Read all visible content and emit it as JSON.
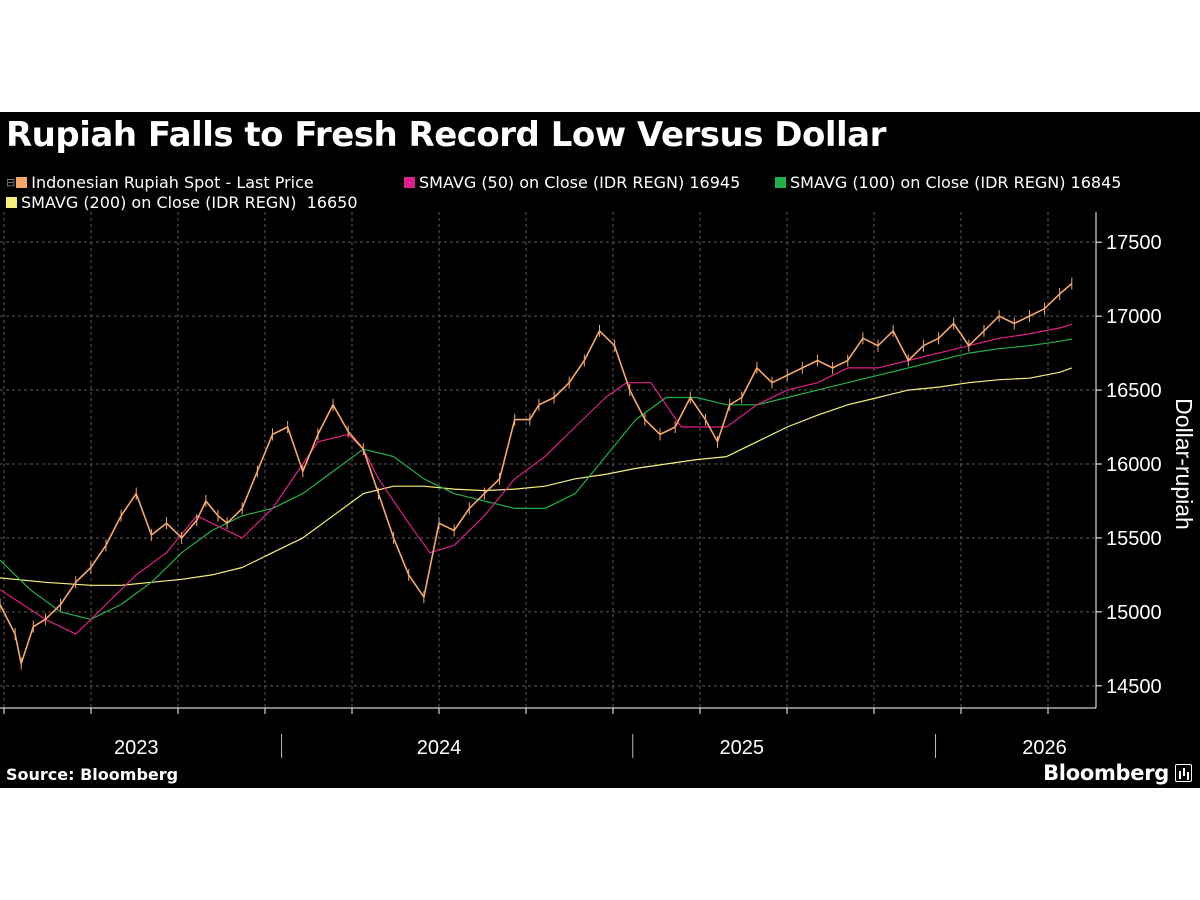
{
  "chart_data": {
    "type": "line",
    "title": "Rupiah Falls to Fresh Record Low Versus Dollar",
    "ylabel": "Dollar-rupiah",
    "xlabel": "",
    "ylim": [
      14350,
      17650
    ],
    "yticks": [
      14500,
      15000,
      15500,
      16000,
      16500,
      17000,
      17500
    ],
    "ytick_labels": [
      "14500",
      "15000",
      "15500",
      "16000",
      "16500",
      "17000",
      "17500"
    ],
    "xlim": [
      2022.55,
      2026.17
    ],
    "xticks": [
      {
        "label": "2023",
        "x": 2023.0
      },
      {
        "label": "2024",
        "x": 2024.0
      },
      {
        "label": "2025",
        "x": 2025.0
      },
      {
        "label": "2026",
        "x": 2026.0
      }
    ],
    "year_separators": [
      2023.48,
      2024.64,
      2025.64
    ],
    "grid": true,
    "legend": [
      {
        "key": "spot",
        "label": "Indonesian Rupiah Spot - Last Price",
        "value": "",
        "color": "#f4a86a"
      },
      {
        "key": "sma50",
        "label": "SMAVG (50)  on Close (IDR REGN)",
        "value": "16945",
        "color": "#e0208a"
      },
      {
        "key": "sma100",
        "label": "SMAVG (100)  on Close (IDR REGN)",
        "value": "16845",
        "color": "#22b04a"
      },
      {
        "key": "sma200",
        "label": "SMAVG (200)  on Close (IDR REGN)",
        "value": "16650",
        "color": "#f6f07a"
      }
    ],
    "series": [
      {
        "name": "Indonesian Rupiah Spot - Last Price",
        "color": "#f4a86a",
        "x": [
          2022.55,
          2022.6,
          2022.62,
          2022.66,
          2022.7,
          2022.75,
          2022.8,
          2022.85,
          2022.9,
          2022.95,
          2023.0,
          2023.05,
          2023.1,
          2023.15,
          2023.2,
          2023.23,
          2023.27,
          2023.3,
          2023.35,
          2023.4,
          2023.45,
          2023.5,
          2023.55,
          2023.6,
          2023.65,
          2023.7,
          2023.75,
          2023.8,
          2023.85,
          2023.9,
          2023.95,
          2024.0,
          2024.05,
          2024.1,
          2024.15,
          2024.2,
          2024.25,
          2024.3,
          2024.33,
          2024.38,
          2024.43,
          2024.48,
          2024.53,
          2024.58,
          2024.63,
          2024.68,
          2024.73,
          2024.78,
          2024.83,
          2024.88,
          2024.92,
          2024.96,
          2025.0,
          2025.05,
          2025.1,
          2025.15,
          2025.2,
          2025.25,
          2025.3,
          2025.35,
          2025.4,
          2025.45,
          2025.5,
          2025.55,
          2025.6,
          2025.65,
          2025.7,
          2025.75,
          2025.8,
          2025.85,
          2025.9,
          2025.95,
          2026.0,
          2026.05,
          2026.09
        ],
        "values": [
          15050,
          14850,
          14650,
          14900,
          14950,
          15050,
          15200,
          15300,
          15450,
          15650,
          15800,
          15520,
          15600,
          15500,
          15620,
          15750,
          15650,
          15600,
          15700,
          15950,
          16200,
          16250,
          15950,
          16200,
          16400,
          16220,
          16100,
          15800,
          15500,
          15250,
          15100,
          15600,
          15550,
          15700,
          15800,
          15900,
          16300,
          16300,
          16400,
          16450,
          16550,
          16700,
          16900,
          16800,
          16500,
          16300,
          16200,
          16250,
          16450,
          16300,
          16150,
          16400,
          16450,
          16650,
          16550,
          16600,
          16650,
          16700,
          16650,
          16700,
          16850,
          16800,
          16900,
          16700,
          16800,
          16850,
          16950,
          16800,
          16900,
          17000,
          16950,
          17000,
          17050,
          17150,
          17220
        ]
      },
      {
        "name": "SMAVG (50)  on Close (IDR REGN)",
        "color": "#e0208a",
        "x": [
          2022.55,
          2022.7,
          2022.8,
          2022.9,
          2023.0,
          2023.1,
          2023.2,
          2023.25,
          2023.35,
          2023.45,
          2023.55,
          2023.6,
          2023.7,
          2023.75,
          2023.8,
          2023.9,
          2023.97,
          2024.05,
          2024.15,
          2024.25,
          2024.35,
          2024.45,
          2024.55,
          2024.62,
          2024.7,
          2024.8,
          2024.88,
          2024.95,
          2025.05,
          2025.15,
          2025.25,
          2025.35,
          2025.45,
          2025.55,
          2025.65,
          2025.75,
          2025.85,
          2025.95,
          2026.05,
          2026.09
        ],
        "values": [
          15150,
          14950,
          14850,
          15050,
          15250,
          15400,
          15650,
          15600,
          15500,
          15700,
          16000,
          16150,
          16200,
          16100,
          15900,
          15600,
          15400,
          15450,
          15650,
          15900,
          16050,
          16250,
          16450,
          16550,
          16550,
          16250,
          16250,
          16250,
          16400,
          16500,
          16550,
          16650,
          16650,
          16700,
          16750,
          16800,
          16850,
          16880,
          16920,
          16945
        ]
      },
      {
        "name": "SMAVG (100)  on Close (IDR REGN)",
        "color": "#22b04a",
        "x": [
          2022.55,
          2022.65,
          2022.75,
          2022.85,
          2022.95,
          2023.05,
          2023.15,
          2023.25,
          2023.35,
          2023.45,
          2023.55,
          2023.65,
          2023.75,
          2023.85,
          2023.95,
          2024.05,
          2024.15,
          2024.25,
          2024.35,
          2024.45,
          2024.55,
          2024.65,
          2024.75,
          2024.85,
          2024.95,
          2025.05,
          2025.15,
          2025.25,
          2025.35,
          2025.45,
          2025.55,
          2025.65,
          2025.75,
          2025.85,
          2025.95,
          2026.05,
          2026.09
        ],
        "values": [
          15350,
          15150,
          15000,
          14950,
          15050,
          15200,
          15400,
          15550,
          15650,
          15700,
          15800,
          15950,
          16100,
          16050,
          15900,
          15800,
          15750,
          15700,
          15700,
          15800,
          16050,
          16300,
          16450,
          16450,
          16400,
          16400,
          16450,
          16500,
          16550,
          16600,
          16650,
          16700,
          16750,
          16780,
          16800,
          16830,
          16845
        ]
      },
      {
        "name": "SMAVG (200)  on Close (IDR REGN)",
        "color": "#f6f07a",
        "x": [
          2022.55,
          2022.7,
          2022.85,
          2022.95,
          2023.05,
          2023.15,
          2023.25,
          2023.35,
          2023.45,
          2023.55,
          2023.65,
          2023.75,
          2023.85,
          2023.95,
          2024.05,
          2024.15,
          2024.25,
          2024.35,
          2024.45,
          2024.55,
          2024.65,
          2024.75,
          2024.85,
          2024.95,
          2025.05,
          2025.15,
          2025.25,
          2025.35,
          2025.45,
          2025.55,
          2025.65,
          2025.75,
          2025.85,
          2025.95,
          2026.05,
          2026.09
        ],
        "values": [
          15230,
          15200,
          15180,
          15180,
          15200,
          15220,
          15250,
          15300,
          15400,
          15500,
          15650,
          15800,
          15850,
          15850,
          15830,
          15820,
          15830,
          15850,
          15900,
          15930,
          15970,
          16000,
          16030,
          16050,
          16150,
          16250,
          16330,
          16400,
          16450,
          16500,
          16520,
          16550,
          16570,
          16580,
          16620,
          16650
        ]
      }
    ]
  },
  "footer": {
    "source": "Source: Bloomberg",
    "brand": "Bloomberg"
  },
  "colors": {
    "background": "#000000",
    "grid": "#5a5a5a",
    "axis": "#ffffff",
    "text": "#ffffff"
  }
}
